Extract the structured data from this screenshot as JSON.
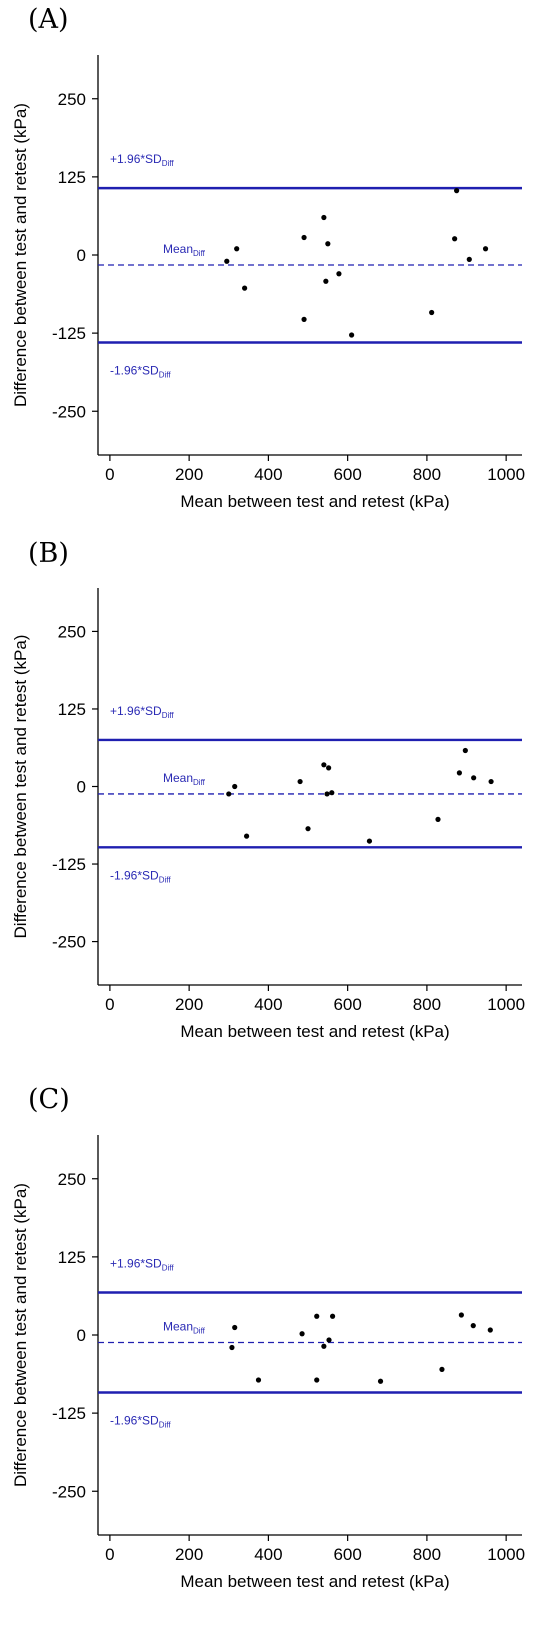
{
  "chart_data": [
    {
      "type": "scatter",
      "panel_label": "(A)",
      "title": "",
      "xlabel": "Mean between test and retest (kPa)",
      "ylabel": "Difference between test and retest (kPa)",
      "xlim": [
        -30,
        1040
      ],
      "ylim": [
        -320,
        320
      ],
      "xticks": [
        0,
        200,
        400,
        600,
        800,
        1000
      ],
      "yticks": [
        250,
        125,
        0,
        -125,
        -250
      ],
      "grid": false,
      "point_color": "#000000",
      "line_color": "#1f1fb0",
      "upper_loa": {
        "value": 107,
        "label": "+1.96*SD",
        "sub": "Diff"
      },
      "mean_diff": {
        "value": -16,
        "label": "Mean",
        "sub": "Diff"
      },
      "lower_loa": {
        "value": -140,
        "label": "-1.96*SD",
        "sub": "Diff"
      },
      "points": [
        {
          "x": 295,
          "y": -10
        },
        {
          "x": 320,
          "y": 10
        },
        {
          "x": 340,
          "y": -53
        },
        {
          "x": 490,
          "y": 28
        },
        {
          "x": 490,
          "y": -103
        },
        {
          "x": 540,
          "y": 60
        },
        {
          "x": 550,
          "y": 18
        },
        {
          "x": 545,
          "y": -42
        },
        {
          "x": 578,
          "y": -30
        },
        {
          "x": 610,
          "y": -128
        },
        {
          "x": 812,
          "y": -92
        },
        {
          "x": 870,
          "y": 26
        },
        {
          "x": 875,
          "y": 103
        },
        {
          "x": 907,
          "y": -7
        },
        {
          "x": 948,
          "y": 10
        }
      ]
    },
    {
      "type": "scatter",
      "panel_label": "(B)",
      "title": "",
      "xlabel": "Mean between test and retest (kPa)",
      "ylabel": "Difference between test and retest (kPa)",
      "xlim": [
        -30,
        1040
      ],
      "ylim": [
        -320,
        320
      ],
      "xticks": [
        0,
        200,
        400,
        600,
        800,
        1000
      ],
      "yticks": [
        250,
        125,
        0,
        -125,
        -250
      ],
      "grid": false,
      "point_color": "#000000",
      "line_color": "#1f1fb0",
      "upper_loa": {
        "value": 75,
        "label": "+1.96*SD",
        "sub": "Diff"
      },
      "mean_diff": {
        "value": -12,
        "label": "Mean",
        "sub": "Diff"
      },
      "lower_loa": {
        "value": -98,
        "label": "-1.96*SD",
        "sub": "Diff"
      },
      "points": [
        {
          "x": 300,
          "y": -12
        },
        {
          "x": 315,
          "y": 0
        },
        {
          "x": 345,
          "y": -80
        },
        {
          "x": 480,
          "y": 8
        },
        {
          "x": 500,
          "y": -68
        },
        {
          "x": 540,
          "y": 35
        },
        {
          "x": 552,
          "y": 30
        },
        {
          "x": 548,
          "y": -12
        },
        {
          "x": 560,
          "y": -10
        },
        {
          "x": 655,
          "y": -88
        },
        {
          "x": 828,
          "y": -53
        },
        {
          "x": 882,
          "y": 22
        },
        {
          "x": 897,
          "y": 58
        },
        {
          "x": 918,
          "y": 14
        },
        {
          "x": 962,
          "y": 8
        }
      ]
    },
    {
      "type": "scatter",
      "panel_label": "(C)",
      "title": "",
      "xlabel": "Mean between test and retest (kPa)",
      "ylabel": "Difference between test and retest (kPa)",
      "xlim": [
        -30,
        1040
      ],
      "ylim": [
        -320,
        320
      ],
      "xticks": [
        0,
        200,
        400,
        600,
        800,
        1000
      ],
      "yticks": [
        250,
        125,
        0,
        -125,
        -250
      ],
      "grid": false,
      "point_color": "#000000",
      "line_color": "#1f1fb0",
      "upper_loa": {
        "value": 68,
        "label": "+1.96*SD",
        "sub": "Diff"
      },
      "mean_diff": {
        "value": -12,
        "label": "Mean",
        "sub": "Diff"
      },
      "lower_loa": {
        "value": -92,
        "label": "-1.96*SD",
        "sub": "Diff"
      },
      "points": [
        {
          "x": 308,
          "y": -20
        },
        {
          "x": 315,
          "y": 12
        },
        {
          "x": 375,
          "y": -72
        },
        {
          "x": 485,
          "y": 2
        },
        {
          "x": 522,
          "y": 30
        },
        {
          "x": 522,
          "y": -72
        },
        {
          "x": 540,
          "y": -18
        },
        {
          "x": 553,
          "y": -8
        },
        {
          "x": 562,
          "y": 30
        },
        {
          "x": 683,
          "y": -74
        },
        {
          "x": 838,
          "y": -55
        },
        {
          "x": 887,
          "y": 32
        },
        {
          "x": 917,
          "y": 15
        },
        {
          "x": 960,
          "y": 8
        }
      ]
    }
  ]
}
